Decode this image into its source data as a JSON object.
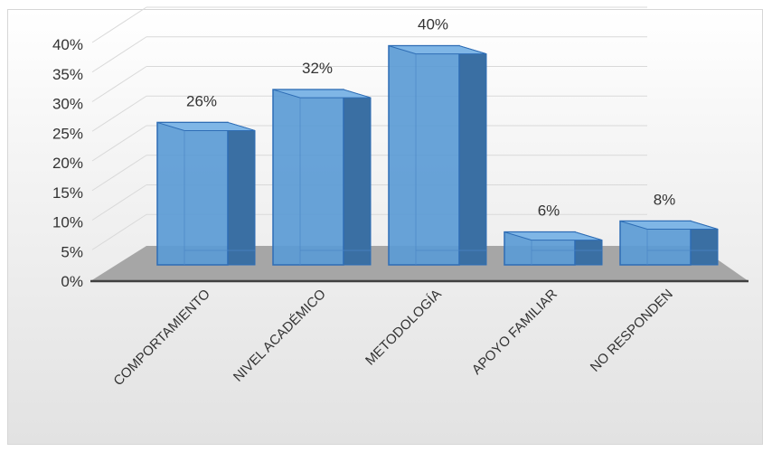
{
  "chart_data": {
    "type": "bar",
    "title": "",
    "xlabel": "",
    "ylabel": "",
    "categories": [
      "COMPORTAMIENTO",
      "NIVEL ACADÉMICO",
      "METODOLOGÍA",
      "APOYO FAMILIAR",
      "NO RESPONDEN"
    ],
    "values": [
      26,
      32,
      40,
      6,
      8
    ],
    "data_labels": [
      "26%",
      "32%",
      "40%",
      "6%",
      "8%"
    ],
    "ylim": [
      0,
      40
    ],
    "yticks": [
      "0%",
      "5%",
      "10%",
      "15%",
      "20%",
      "25%",
      "30%",
      "35%",
      "40%"
    ],
    "grid": true,
    "legend": "none",
    "style": "3d-column",
    "colors": {
      "bar_front": "#5b9bd5",
      "bar_side": "#3a6fa3",
      "bar_top": "#7fb6e6",
      "bar_edge": "#2e6db5",
      "floor": "#a6a6a6",
      "grid": "#d9d9d9"
    }
  }
}
